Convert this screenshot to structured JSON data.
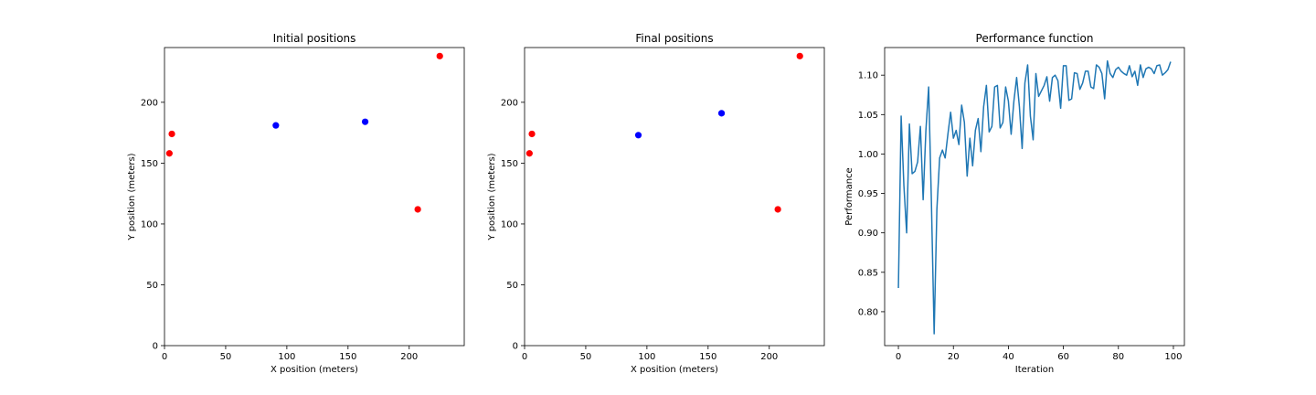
{
  "chart_data": [
    {
      "type": "scatter",
      "title": "Initial positions",
      "xlabel": "X position (meters)",
      "ylabel": "Y position (meters)",
      "xlim": [
        0,
        245
      ],
      "ylim": [
        0,
        245
      ],
      "xticks": [
        0,
        50,
        100,
        150,
        200
      ],
      "yticks": [
        0,
        50,
        100,
        150,
        200
      ],
      "grid": false,
      "series": [
        {
          "color": "#ff0000",
          "points": [
            [
              4,
              158
            ],
            [
              6,
              174
            ],
            [
              207,
              112
            ],
            [
              225,
              238
            ]
          ]
        },
        {
          "color": "#0000ff",
          "points": [
            [
              91,
              181
            ],
            [
              164,
              184
            ]
          ]
        }
      ]
    },
    {
      "type": "scatter",
      "title": "Final positions",
      "xlabel": "X position (meters)",
      "ylabel": "Y position (meters)",
      "xlim": [
        0,
        245
      ],
      "ylim": [
        0,
        245
      ],
      "xticks": [
        0,
        50,
        100,
        150,
        200
      ],
      "yticks": [
        0,
        50,
        100,
        150,
        200
      ],
      "grid": false,
      "series": [
        {
          "color": "#ff0000",
          "points": [
            [
              4,
              158
            ],
            [
              6,
              174
            ],
            [
              207,
              112
            ],
            [
              225,
              238
            ]
          ]
        },
        {
          "color": "#0000ff",
          "points": [
            [
              93,
              173
            ],
            [
              161,
              191
            ]
          ]
        }
      ]
    },
    {
      "type": "line",
      "title": "Performance function",
      "xlabel": "Iteration",
      "ylabel": "Performance",
      "xlim": [
        -5,
        104
      ],
      "ylim": [
        0.757,
        1.135
      ],
      "xticks": [
        0,
        20,
        40,
        60,
        80,
        100
      ],
      "yticks": [
        0.8,
        0.85,
        0.9,
        0.95,
        1.0,
        1.05,
        1.1
      ],
      "ytick_labels": [
        "0.80",
        "0.85",
        "0.90",
        "0.95",
        "1.00",
        "1.05",
        "1.10"
      ],
      "grid": false,
      "series": [
        {
          "color": "#1f77b4",
          "x": [
            0,
            1,
            2,
            3,
            4,
            5,
            6,
            7,
            8,
            9,
            10,
            11,
            12,
            13,
            14,
            15,
            16,
            17,
            18,
            19,
            20,
            21,
            22,
            23,
            24,
            25,
            26,
            27,
            28,
            29,
            30,
            31,
            32,
            33,
            34,
            35,
            36,
            37,
            38,
            39,
            40,
            41,
            42,
            43,
            44,
            45,
            46,
            47,
            48,
            49,
            50,
            51,
            52,
            53,
            54,
            55,
            56,
            57,
            58,
            59,
            60,
            61,
            62,
            63,
            64,
            65,
            66,
            67,
            68,
            69,
            70,
            71,
            72,
            73,
            74,
            75,
            76,
            77,
            78,
            79,
            80,
            81,
            82,
            83,
            84,
            85,
            86,
            87,
            88,
            89,
            90,
            91,
            92,
            93,
            94,
            95,
            96,
            97,
            98,
            99
          ],
          "values": [
            0.83,
            1.048,
            0.96,
            0.9,
            1.038,
            0.975,
            0.978,
            0.99,
            1.035,
            0.942,
            1.03,
            1.085,
            0.94,
            0.772,
            0.93,
            0.995,
            1.005,
            0.995,
            1.025,
            1.053,
            1.02,
            1.03,
            1.012,
            1.062,
            1.04,
            0.972,
            1.02,
            0.985,
            1.03,
            1.045,
            1.003,
            1.06,
            1.087,
            1.028,
            1.035,
            1.085,
            1.087,
            1.033,
            1.04,
            1.085,
            1.067,
            1.025,
            1.067,
            1.097,
            1.06,
            1.007,
            1.09,
            1.113,
            1.048,
            1.018,
            1.102,
            1.073,
            1.08,
            1.087,
            1.098,
            1.067,
            1.097,
            1.1,
            1.093,
            1.058,
            1.112,
            1.112,
            1.068,
            1.07,
            1.103,
            1.102,
            1.082,
            1.09,
            1.105,
            1.105,
            1.085,
            1.083,
            1.113,
            1.11,
            1.102,
            1.07,
            1.118,
            1.102,
            1.097,
            1.107,
            1.11,
            1.105,
            1.102,
            1.1,
            1.112,
            1.098,
            1.105,
            1.087,
            1.113,
            1.097,
            1.108,
            1.11,
            1.108,
            1.102,
            1.112,
            1.113,
            1.1,
            1.103,
            1.107,
            1.117
          ]
        }
      ]
    }
  ]
}
